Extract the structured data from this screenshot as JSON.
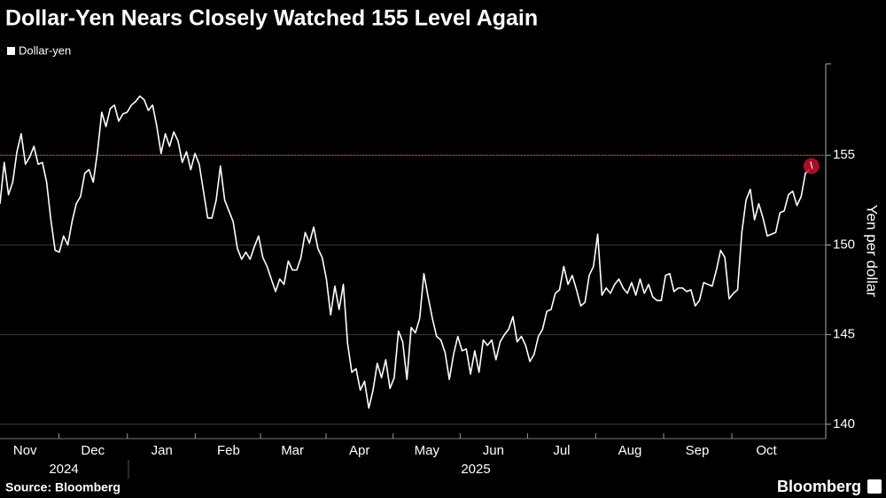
{
  "chart_data": {
    "type": "line",
    "title": "Dollar-Yen Nears Closely Watched 155 Level Again",
    "y_axis_label": "Yen per dollar",
    "source": "Source: Bloomberg",
    "brand": "Bloomberg",
    "year_labels": [
      "2024",
      "2025"
    ],
    "series": [
      {
        "name": "Dollar-yen",
        "color": "#ffffff",
        "values": [
          152.3,
          154.6,
          152.8,
          153.5,
          155.2,
          156.2,
          154.5,
          154.9,
          155.5,
          154.5,
          154.6,
          153.5,
          151.4,
          149.7,
          149.6,
          150.5,
          150.0,
          151.3,
          152.3,
          152.7,
          154.0,
          154.2,
          153.5,
          155.2,
          157.4,
          156.6,
          157.6,
          157.8,
          156.9,
          157.3,
          157.4,
          157.8,
          158.0,
          158.3,
          158.1,
          157.5,
          157.8,
          156.6,
          155.1,
          156.2,
          155.5,
          156.3,
          155.8,
          154.6,
          155.2,
          154.2,
          155.1,
          154.5,
          153.0,
          151.5,
          151.5,
          152.5,
          154.4,
          152.5,
          151.9,
          151.3,
          149.8,
          149.2,
          149.6,
          149.2,
          149.9,
          150.5,
          149.3,
          148.8,
          148.1,
          147.4,
          148.1,
          147.8,
          149.1,
          148.6,
          148.6,
          149.3,
          150.7,
          150.1,
          151.0,
          149.8,
          149.3,
          148.1,
          146.1,
          147.7,
          146.4,
          147.8,
          144.5,
          142.9,
          143.1,
          141.9,
          142.4,
          140.9,
          141.9,
          143.4,
          142.6,
          143.6,
          142.0,
          142.6,
          145.2,
          144.6,
          142.5,
          145.4,
          145.1,
          145.9,
          148.4,
          147.1,
          145.9,
          144.9,
          144.7,
          144.0,
          142.5,
          143.9,
          144.9,
          144.1,
          144.2,
          142.8,
          144.1,
          142.9,
          144.7,
          144.4,
          144.7,
          143.6,
          144.6,
          145.0,
          145.3,
          146.0,
          144.6,
          144.9,
          144.4,
          143.5,
          143.9,
          144.9,
          145.3,
          146.3,
          146.4,
          147.3,
          147.5,
          148.8,
          147.8,
          148.3,
          147.5,
          146.6,
          146.8,
          148.3,
          148.8,
          150.6,
          147.2,
          147.6,
          147.3,
          147.8,
          148.1,
          147.6,
          147.3,
          147.9,
          147.2,
          148.1,
          147.3,
          147.8,
          147.1,
          146.9,
          146.9,
          148.3,
          148.4,
          147.4,
          147.6,
          147.6,
          147.4,
          147.5,
          146.6,
          146.9,
          147.9,
          147.8,
          147.7,
          148.6,
          149.7,
          149.3,
          147.0,
          147.3,
          147.5,
          150.7,
          152.5,
          153.1,
          151.4,
          152.3,
          151.5,
          150.5,
          150.6,
          150.7,
          151.8,
          151.9,
          152.8,
          153.0,
          152.2,
          152.7,
          154.0,
          154.2
        ]
      }
    ],
    "xlim": [
      0,
      194.8
    ],
    "xticks": [
      {
        "value": 5.9,
        "label": "Nov"
      },
      {
        "value": 21.9,
        "label": "Dec"
      },
      {
        "value": 38.2,
        "label": "Jan"
      },
      {
        "value": 53.9,
        "label": "Feb"
      },
      {
        "value": 69.0,
        "label": "Mar"
      },
      {
        "value": 84.8,
        "label": "Apr"
      },
      {
        "value": 100.7,
        "label": "May"
      },
      {
        "value": 116.4,
        "label": "Jun"
      },
      {
        "value": 132.5,
        "label": "Jul"
      },
      {
        "value": 148.6,
        "label": "Aug"
      },
      {
        "value": 164.5,
        "label": "Sep"
      },
      {
        "value": 180.8,
        "label": "Oct"
      }
    ],
    "ylim": [
      139.2,
      160.1
    ],
    "yticks": [
      140,
      145,
      150,
      155
    ],
    "grid": true,
    "reference_line": {
      "value": 155,
      "color": "#e0303a"
    },
    "end_marker_color": "#c8102e"
  }
}
